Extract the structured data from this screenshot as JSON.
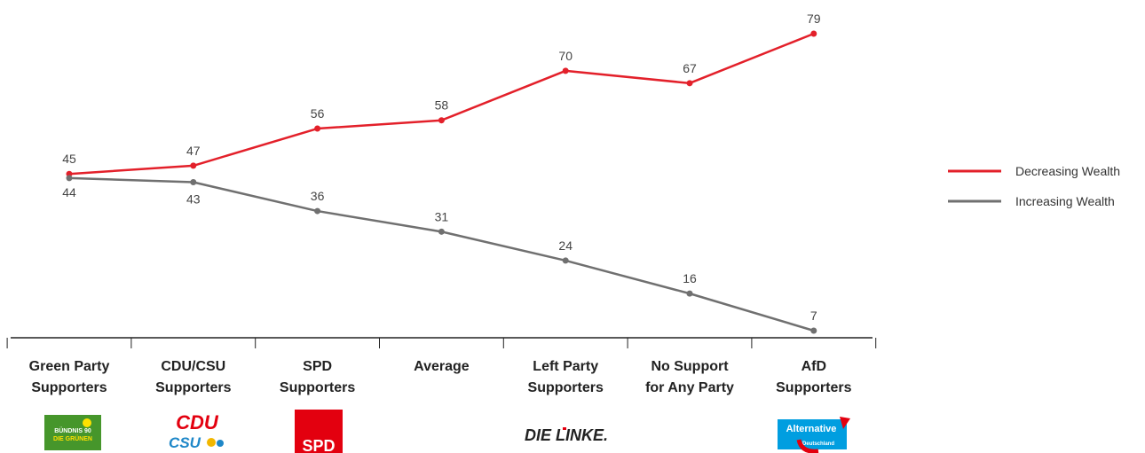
{
  "chart_data": {
    "type": "line",
    "categories": [
      [
        "Green Party",
        "Supporters"
      ],
      [
        "CDU/CSU",
        "Supporters"
      ],
      [
        "SPD",
        "Supporters"
      ],
      [
        "Average"
      ],
      [
        "Left Party",
        "Supporters"
      ],
      [
        "No Support",
        "for Any Party"
      ],
      [
        "AfD",
        "Supporters"
      ]
    ],
    "series": [
      {
        "name": "Decreasing Wealth",
        "color": "#e3202a",
        "values": [
          45,
          47,
          56,
          58,
          70,
          67,
          79
        ]
      },
      {
        "name": "Increasing Wealth",
        "color": "#707070",
        "values": [
          44,
          43,
          36,
          31,
          24,
          16,
          7
        ]
      }
    ],
    "ylim": [
      0,
      85
    ],
    "grid": false,
    "legend_position": "right"
  },
  "logos": {
    "green": {
      "line1": "BÜNDNIS 90",
      "line2": "DIE GRÜNEN"
    },
    "cdu": {
      "line1": "CDU",
      "line2": "CSU"
    },
    "spd": {
      "text": "SPD"
    },
    "linke": {
      "text": "DIE LINKE."
    },
    "afd": {
      "line1": "Alternative",
      "line2": "Deutschland"
    }
  },
  "colors": {
    "axis": "#222222",
    "green": "#46962b",
    "red": "#e3000f",
    "cdu_blue": "#1e87c8",
    "afd_blue": "#009ee0"
  }
}
